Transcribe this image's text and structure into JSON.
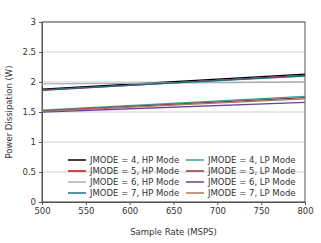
{
  "chart_data": {
    "type": "line",
    "x_label": "Sample Rate (MSPS)",
    "y_label": "Power Dissipation (W)",
    "x": [
      500,
      800
    ],
    "xlim": [
      500,
      800
    ],
    "xticks": [
      500,
      550,
      600,
      650,
      700,
      750,
      800
    ],
    "ylim": [
      0,
      3
    ],
    "yticks": [
      0,
      0.5,
      1,
      1.5,
      2,
      2.5,
      3
    ],
    "grid": true,
    "legend": "bottom",
    "series": [
      {
        "name": "JMODE = 4, HP Mode",
        "color": "#000000",
        "values": [
          1.88,
          2.13
        ]
      },
      {
        "name": "JMODE = 4, LP Mode",
        "color": "#3aa39a",
        "values": [
          1.53,
          1.76
        ]
      },
      {
        "name": "JMODE = 5, HP Mode",
        "color": "#c0101a",
        "values": [
          1.86,
          2.11
        ]
      },
      {
        "name": "JMODE = 5, LP Mode",
        "color": "#8a3a4a",
        "values": [
          1.52,
          1.74
        ]
      },
      {
        "name": "JMODE = 6, HP Mode",
        "color": "#a8b0b0",
        "values": [
          1.97,
          2.0
        ]
      },
      {
        "name": "JMODE = 6, LP Mode",
        "color": "#6a3f9a",
        "values": [
          1.5,
          1.66
        ]
      },
      {
        "name": "JMODE = 7, HP Mode",
        "color": "#1f6f8a",
        "values": [
          1.87,
          2.1
        ]
      },
      {
        "name": "JMODE = 7, LP Mode",
        "color": "#a87a5a",
        "values": [
          1.51,
          1.72
        ]
      }
    ]
  }
}
